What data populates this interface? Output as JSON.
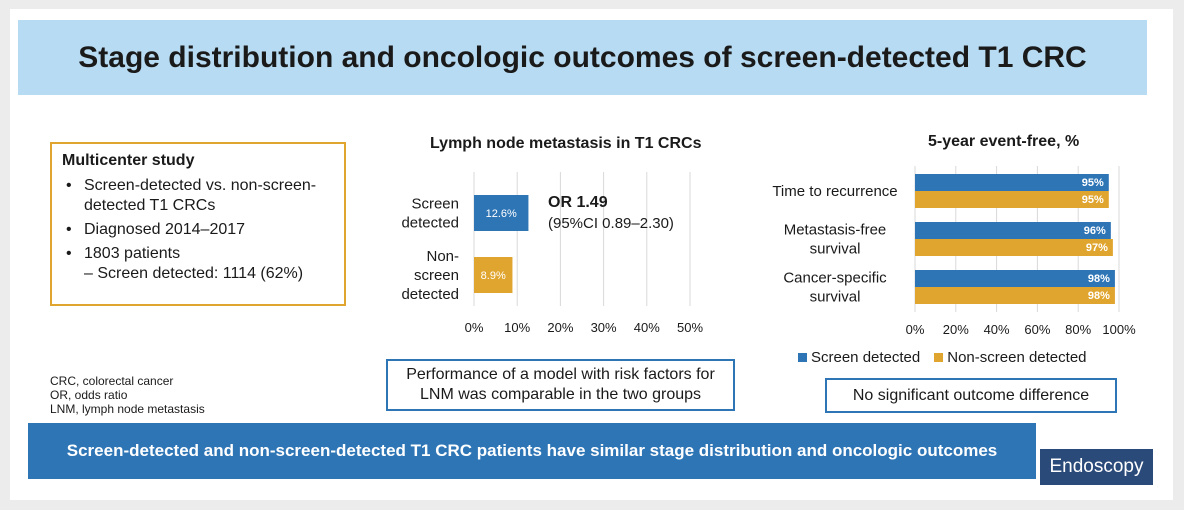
{
  "title": "Stage distribution and oncologic outcomes of screen-detected T1 CRC",
  "study": {
    "heading": "Multicenter study",
    "bullets": [
      "Screen-detected vs. non-screen-detected T1 CRCs",
      "Diagnosed 2014–2017",
      "1803 patients"
    ],
    "sub_bullet": "– Screen detected: 1114 (62%)"
  },
  "abbreviations": [
    "CRC, colorectal cancer",
    "OR, odds ratio",
    "LNM, lymph node metastasis"
  ],
  "colors": {
    "screen": "#2e75b6",
    "non_screen": "#e0a52e"
  },
  "chart_data": [
    {
      "type": "bar",
      "orientation": "horizontal",
      "title": "Lymph node metastasis in T1 CRCs",
      "categories": [
        "Screen detected",
        "Non-screen detected"
      ],
      "category_lines": [
        [
          "Screen",
          "detected"
        ],
        [
          "Non-",
          "screen",
          "detected"
        ]
      ],
      "values": [
        12.6,
        8.9
      ],
      "data_labels": [
        "12.6%",
        "8.9%"
      ],
      "bar_colors": [
        "#2e75b6",
        "#e0a52e"
      ],
      "xlim": [
        0,
        50
      ],
      "xticks": [
        0,
        10,
        20,
        30,
        40,
        50
      ],
      "xtick_labels": [
        "0%",
        "10%",
        "20%",
        "30%",
        "40%",
        "50%"
      ],
      "grid": true,
      "annotation": {
        "line1": "OR 1.49",
        "line2": "(95%CI 0.89–2.30)"
      }
    },
    {
      "type": "bar",
      "orientation": "horizontal",
      "title": "5-year event-free, %",
      "categories": [
        "Time to recurrence",
        "Metastasis-free survival",
        "Cancer-specific survival"
      ],
      "category_lines": [
        [
          "Time to recurrence"
        ],
        [
          "Metastasis-free",
          "survival"
        ],
        [
          "Cancer-specific",
          "survival"
        ]
      ],
      "series": [
        {
          "name": "Screen detected",
          "color": "#2e75b6",
          "values": [
            95,
            96,
            98
          ],
          "labels": [
            "95%",
            "96%",
            "98%"
          ]
        },
        {
          "name": "Non-screen detected",
          "color": "#e0a52e",
          "values": [
            95,
            97,
            98
          ],
          "labels": [
            "95%",
            "97%",
            "98%"
          ]
        }
      ],
      "xlim": [
        0,
        100
      ],
      "xticks": [
        0,
        20,
        40,
        60,
        80,
        100
      ],
      "xtick_labels": [
        "0%",
        "20%",
        "40%",
        "60%",
        "80%",
        "100%"
      ],
      "grid": true,
      "legend_position": "bottom"
    }
  ],
  "notes": {
    "model": "Performance of a model with risk factors for LNM was comparable in the two groups",
    "outcome": "No significant outcome difference"
  },
  "conclusion": "Screen-detected and non-screen-detected T1 CRC patients have similar stage distribution and oncologic outcomes",
  "logo": "Endoscopy"
}
